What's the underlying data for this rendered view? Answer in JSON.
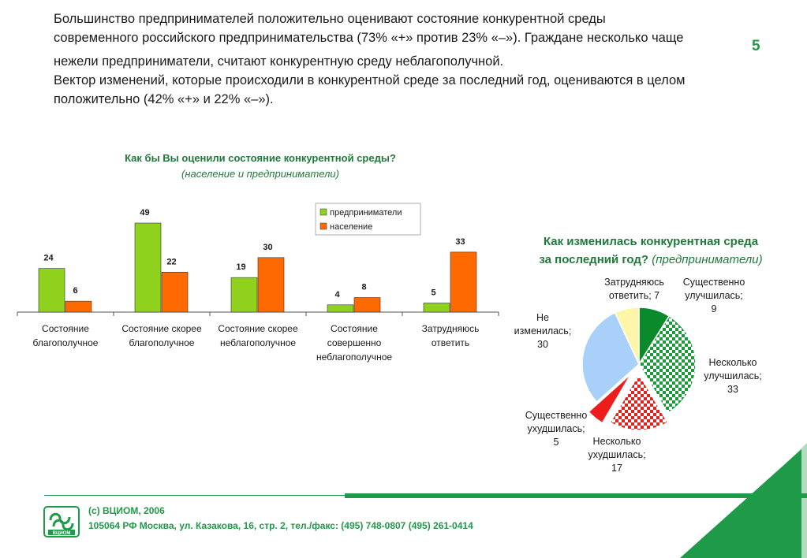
{
  "intro": {
    "line1": "Большинство предпринимателей положительно оценивают состояние конкурентной среды",
    "line2": "современного российского предпринимательства (73% «+» против 23% «–»). Граждане несколько чаще",
    "line3": "нежели предприниматели, считают конкурентную среду неблагополучной.",
    "line4": "Вектор изменений, которые происходили в конкурентной среде за последний год, оцениваются в целом",
    "line5": "положительно (42% «+» и 22% «–»)."
  },
  "slide_number": "5",
  "footer": {
    "copyright": "(с) ВЦИОМ, 2006",
    "address": "105064 РФ Москва, ул. Казакова, 16, стр. 2, тел./факс: (495) 748-0807 (495) 261-0414",
    "logo_text": "ВЦИОМ"
  },
  "colors": {
    "green": "#8fd11c",
    "orange": "#ff6a00",
    "brand": "#1f9a49",
    "title": "#1f7a3a"
  },
  "chart_data": [
    {
      "type": "bar",
      "title": "Как бы Вы оценили состояние конкурентной среды?",
      "subtitle": "(население и предприниматели)",
      "categories": [
        "Состояние благополучное",
        "Состояние скорее благополучное",
        "Состояние скорее неблагополучное",
        "Состояние совершенно неблагополучное",
        "Затрудняюсь ответить"
      ],
      "category_lines": [
        [
          "Состояние",
          "благополучное"
        ],
        [
          "Состояние скорее",
          "благополучное"
        ],
        [
          "Состояние скорее",
          "неблагополучное"
        ],
        [
          "Состояние",
          "совершенно",
          "неблагополучное"
        ],
        [
          "Затрудняюсь",
          "ответить"
        ]
      ],
      "series": [
        {
          "name": "предприниматели",
          "values": [
            24,
            49,
            19,
            4,
            5
          ],
          "color": "#8fd11c"
        },
        {
          "name": "население",
          "values": [
            6,
            22,
            30,
            8,
            33
          ],
          "color": "#ff6a00"
        }
      ],
      "ylim": [
        0,
        50
      ],
      "legend": "top-right",
      "grid": false
    },
    {
      "type": "pie",
      "title": "Как изменилась конкурентная среда за последний год?",
      "subtitle": "(предприниматели)",
      "title_line1": "Как изменилась конкурентная среда",
      "title_line2": "за последний год?",
      "slices": [
        {
          "label": "Существенно улучшилась",
          "value": 9,
          "lines": [
            "Существенно",
            "улучшилась;",
            "9"
          ],
          "color": "#0a8a2a",
          "pattern": "solid"
        },
        {
          "label": "Несколько улучшилась",
          "value": 33,
          "lines": [
            "Несколько",
            "улучшилась;",
            "33"
          ],
          "color": "#1a9a3a",
          "pattern": "check"
        },
        {
          "label": "Несколько ухудшилась",
          "value": 17,
          "lines": [
            "Несколько",
            "ухудшилась;",
            "17"
          ],
          "color": "#e8201c",
          "pattern": "check"
        },
        {
          "label": "Существенно ухудшилась",
          "value": 5,
          "lines": [
            "Существенно",
            "ухудшилась;",
            "5"
          ],
          "color": "#ee1c1c",
          "pattern": "solid"
        },
        {
          "label": "Не изменилась",
          "value": 30,
          "lines": [
            "Не",
            "изменилась;",
            "30"
          ],
          "color": "#a8d0f8",
          "pattern": "solid"
        },
        {
          "label": "Затрудняюсь ответить",
          "value": 7,
          "lines": [
            "Затрудняюсь",
            "ответить; 7"
          ],
          "color": "#fdf5a8",
          "pattern": "solid"
        }
      ]
    }
  ]
}
